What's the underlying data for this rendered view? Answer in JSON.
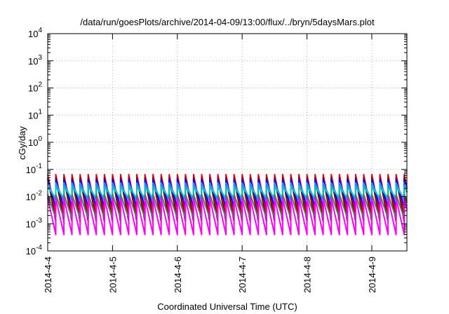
{
  "chart_data": {
    "type": "line",
    "title": "/data/run/goesPlots/archive/2014-04-09/13:00/flux/../bryn/5daysMars.plot",
    "xlabel": "Coordinated Universal Time (UTC)",
    "ylabel": "cGy/day",
    "y_scale": "log",
    "ylim": [
      0.0001,
      10000
    ],
    "xlim": [
      "2014-04-04 00:00",
      "2014-04-09 13:00"
    ],
    "grid": true,
    "legend": "none",
    "x_ticks": [
      "2014-4-4",
      "2014-4-5",
      "2014-4-6",
      "2014-4-7",
      "2014-4-8",
      "2014-4-9"
    ],
    "y_ticks": [
      {
        "value": 0.0001,
        "base": "10",
        "exp": "-4"
      },
      {
        "value": 0.001,
        "base": "10",
        "exp": "-3"
      },
      {
        "value": 0.01,
        "base": "10",
        "exp": "-2"
      },
      {
        "value": 0.1,
        "base": "10",
        "exp": "-1"
      },
      {
        "value": 1,
        "base": "10",
        "exp": "0"
      },
      {
        "value": 10,
        "base": "10",
        "exp": "1"
      },
      {
        "value": 100,
        "base": "10",
        "exp": "2"
      },
      {
        "value": 1000,
        "base": "10",
        "exp": "3"
      },
      {
        "value": 10000,
        "base": "10",
        "exp": "4"
      }
    ],
    "sawtooth_period_hours": 3,
    "series": [
      {
        "color": "#ff0000",
        "peak": 0.065,
        "trough": 0.0022
      },
      {
        "color": "#8b0000",
        "peak": 0.05,
        "trough": 0.0012
      },
      {
        "color": "#0000ff",
        "peak": 0.042,
        "trough": 0.004
      },
      {
        "color": "#1e90ff",
        "peak": 0.032,
        "trough": 0.007
      },
      {
        "color": "#00c8c8",
        "peak": 0.022,
        "trough": 0.009
      },
      {
        "color": "#2e8b57",
        "peak": 0.012,
        "trough": 0.0016
      },
      {
        "color": "#ff00ff",
        "peak": 0.009,
        "trough": 0.0004
      }
    ]
  }
}
